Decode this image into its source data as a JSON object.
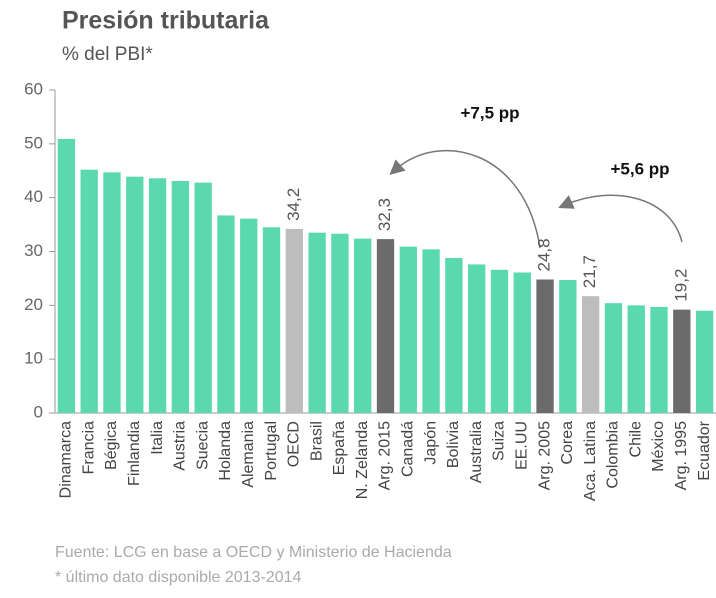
{
  "chart_data": {
    "type": "bar",
    "title": "Presión tributaria",
    "subtitle": "% del PBI*",
    "categories": [
      "Dinamarca",
      "Francia",
      "Bégica",
      "Finlandia",
      "Italia",
      "Austria",
      "Suecia",
      "Holanda",
      "Alemania",
      "Portugal",
      "OECD",
      "Brasil",
      "España",
      "N. Zelanda",
      "Arg. 2015",
      "Canadá",
      "Japón",
      "Bolivia",
      "Australia",
      "Suiza",
      "EE.UU",
      "Arg. 2005",
      "Corea",
      "Aca. Latina",
      "Colombia",
      "Chile",
      "México",
      "Arg. 1995",
      "Ecuador"
    ],
    "values": [
      50.9,
      45.2,
      44.7,
      43.9,
      43.6,
      43.1,
      42.8,
      36.7,
      36.1,
      34.5,
      34.2,
      33.5,
      33.3,
      32.4,
      32.3,
      30.9,
      30.4,
      28.8,
      27.6,
      26.6,
      26.1,
      24.8,
      24.7,
      21.7,
      20.4,
      20.0,
      19.7,
      19.2,
      19.0
    ],
    "value_labels": [
      null,
      null,
      null,
      null,
      null,
      null,
      null,
      null,
      null,
      null,
      "34,2",
      null,
      null,
      null,
      "32,3",
      null,
      null,
      null,
      null,
      null,
      null,
      "24,8",
      null,
      "21,7",
      null,
      null,
      null,
      "19,2",
      null
    ],
    "colors": [
      "#5ad8ae",
      "#5ad8ae",
      "#5ad8ae",
      "#5ad8ae",
      "#5ad8ae",
      "#5ad8ae",
      "#5ad8ae",
      "#5ad8ae",
      "#5ad8ae",
      "#5ad8ae",
      "#bdbdbd",
      "#5ad8ae",
      "#5ad8ae",
      "#5ad8ae",
      "#6b6b6b",
      "#5ad8ae",
      "#5ad8ae",
      "#5ad8ae",
      "#5ad8ae",
      "#5ad8ae",
      "#5ad8ae",
      "#6b6b6b",
      "#5ad8ae",
      "#bdbdbd",
      "#5ad8ae",
      "#5ad8ae",
      "#5ad8ae",
      "#6b6b6b",
      "#5ad8ae"
    ],
    "ylim": [
      0,
      60
    ],
    "yticks": [
      0,
      10,
      20,
      30,
      40,
      50,
      60
    ],
    "annotations": [
      "+7,5 pp",
      "+5,6 pp"
    ],
    "source": "Fuente: LCG en base a OECD y Ministerio de Hacienda",
    "note": "* último dato disponible 2013-2014"
  }
}
